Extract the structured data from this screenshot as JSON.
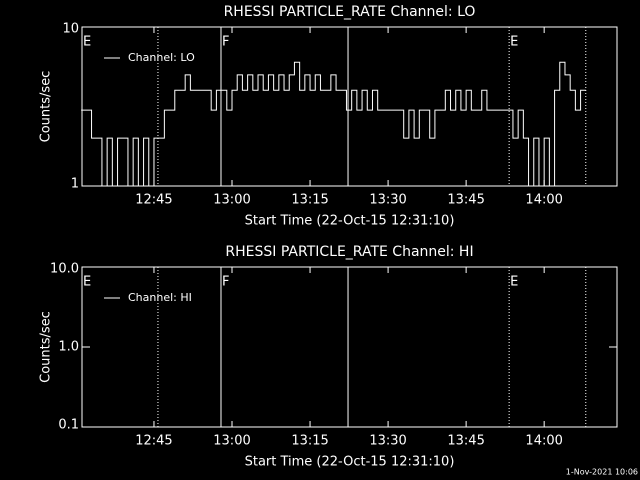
{
  "chart_data": [
    {
      "type": "line",
      "title": "RHESSI PARTICLE_RATE Channel: LO",
      "ylabel": "Counts/sec",
      "xlabel": "Start Time (22-Oct-15 12:31:10)",
      "log_y": true,
      "legend": "top-left",
      "xlim": [
        "12:31:10",
        "14:14"
      ],
      "xticks": [
        "12:45",
        "13:00",
        "13:15",
        "13:30",
        "13:45",
        "14:00"
      ],
      "ylim": [
        1,
        10
      ],
      "yticks": [
        1,
        10
      ],
      "vlines": [
        {
          "x": "12:45:46",
          "style": "dotted"
        },
        {
          "x": "12:57:53",
          "style": "solid"
        },
        {
          "x": "13:22:18",
          "style": "solid"
        },
        {
          "x": "13:53:16",
          "style": "dotted"
        },
        {
          "x": "14:08",
          "style": "dotted"
        }
      ],
      "annotations": [
        {
          "x": "12:31:10",
          "label": "E"
        },
        {
          "x": "12:57:53",
          "label": "F"
        },
        {
          "x": "13:53:16",
          "label": "E"
        }
      ],
      "series": [
        {
          "name": "Channel: LO",
          "color": "#ffffff",
          "x": [
            "12:31",
            "12:32",
            "12:33",
            "12:34",
            "12:35",
            "12:36",
            "12:37",
            "12:38",
            "12:39",
            "12:40",
            "12:41",
            "12:42",
            "12:43",
            "12:44",
            "12:45",
            "12:46",
            "12:47",
            "12:48",
            "12:49",
            "12:50",
            "12:51",
            "12:52",
            "12:53",
            "12:54",
            "12:55",
            "12:56",
            "12:57",
            "12:58",
            "12:59",
            "13:00",
            "13:01",
            "13:02",
            "13:03",
            "13:04",
            "13:05",
            "13:06",
            "13:07",
            "13:08",
            "13:09",
            "13:10",
            "13:11",
            "13:12",
            "13:13",
            "13:14",
            "13:15",
            "13:16",
            "13:17",
            "13:18",
            "13:19",
            "13:20",
            "13:21",
            "13:22",
            "13:23",
            "13:24",
            "13:25",
            "13:26",
            "13:27",
            "13:28",
            "13:29",
            "13:30",
            "13:31",
            "13:32",
            "13:33",
            "13:34",
            "13:35",
            "13:36",
            "13:37",
            "13:38",
            "13:39",
            "13:40",
            "13:41",
            "13:42",
            "13:43",
            "13:44",
            "13:45",
            "13:46",
            "13:47",
            "13:48",
            "13:49",
            "13:50",
            "13:51",
            "13:52",
            "13:53",
            "13:54",
            "13:55",
            "13:56",
            "13:57",
            "13:58",
            "13:59",
            "14:00",
            "14:01",
            "14:02",
            "14:03",
            "14:04",
            "14:05",
            "14:06",
            "14:07",
            "14:08"
          ],
          "values": [
            3,
            3,
            2,
            2,
            1,
            2,
            1,
            2,
            2,
            1,
            2,
            1,
            2,
            1,
            2,
            2,
            3,
            3,
            4,
            4,
            5,
            4,
            4,
            4,
            4,
            3,
            4,
            4,
            3,
            4,
            5,
            4,
            5,
            4,
            5,
            4,
            5,
            4,
            5,
            4,
            5,
            6,
            4,
            5,
            4,
            5,
            4,
            4,
            5,
            4,
            4,
            3,
            4,
            3,
            4,
            3,
            4,
            3,
            3,
            3,
            3,
            3,
            2,
            3,
            2,
            3,
            3,
            2,
            3,
            3,
            4,
            3,
            4,
            3,
            4,
            3,
            3,
            4,
            3,
            3,
            3,
            3,
            3,
            2,
            3,
            2,
            1,
            2,
            1,
            2,
            1,
            4,
            6,
            5,
            4,
            3,
            4,
            4
          ]
        }
      ]
    },
    {
      "type": "line",
      "title": "RHESSI PARTICLE_RATE Channel: HI",
      "ylabel": "Counts/sec",
      "xlabel": "Start Time (22-Oct-15 12:31:10)",
      "log_y": true,
      "legend": "top-left",
      "xlim": [
        "12:31:10",
        "14:14"
      ],
      "xticks": [
        "12:45",
        "13:00",
        "13:15",
        "13:30",
        "13:45",
        "14:00"
      ],
      "ylim": [
        0.1,
        10
      ],
      "yticks": [
        0.1,
        {
          "value": 1,
          "label": "1.0"
        },
        {
          "value": 10,
          "label": "10.0"
        }
      ],
      "vlines": [
        {
          "x": "12:45:46",
          "style": "dotted"
        },
        {
          "x": "12:57:53",
          "style": "solid"
        },
        {
          "x": "13:22:18",
          "style": "solid"
        },
        {
          "x": "13:53:16",
          "style": "dotted"
        },
        {
          "x": "14:08",
          "style": "dotted"
        }
      ],
      "annotations": [
        {
          "x": "12:31:10",
          "label": "E"
        },
        {
          "x": "12:57:53",
          "label": "F"
        },
        {
          "x": "13:53:16",
          "label": "E"
        }
      ],
      "series": [
        {
          "name": "Channel: HI",
          "color": "#ffffff",
          "x": [],
          "values": []
        }
      ]
    }
  ],
  "footer": "1-Nov-2021 10:06"
}
